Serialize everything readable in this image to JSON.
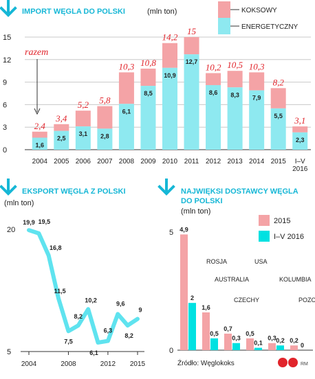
{
  "colors": {
    "accent": "#16b7d6",
    "koksowy": "#f4a3a6",
    "energetyczny": "#8ee9f0",
    "cyan_strong": "#00e1e1",
    "label_red": "#e1242b",
    "line": "#5fe3ef"
  },
  "chart_data": [
    {
      "type": "bar",
      "title": "IMPORT WĘGLA DO POLSKI",
      "unit": "(mln ton)",
      "categories": [
        "2004",
        "2005",
        "2006",
        "2007",
        "2008",
        "2009",
        "2010",
        "2011",
        "2012",
        "2013",
        "2014",
        "2015",
        "I–V 2016"
      ],
      "series": [
        {
          "name": "ENERGETYCZNY",
          "values": [
            1.6,
            2.5,
            3.1,
            2.8,
            6.1,
            8.5,
            10.9,
            12.7,
            8.6,
            8.3,
            7.9,
            5.5,
            2.3
          ]
        },
        {
          "name": "KOKSOWY",
          "values": [
            0.8,
            0.9,
            2.1,
            3.0,
            4.2,
            2.3,
            3.3,
            2.3,
            1.6,
            2.2,
            2.4,
            2.7,
            0.8
          ]
        }
      ],
      "series_labels": [
        "1,6",
        "2,5",
        "3,1",
        "2,8",
        "6,1",
        "8,5",
        "10,9",
        "12,7",
        "8,6",
        "8,3",
        "7,9",
        "5,5",
        "2,3"
      ],
      "totals": [
        2.4,
        3.4,
        5.2,
        5.8,
        10.3,
        10.8,
        14.2,
        15,
        10.2,
        10.5,
        10.3,
        8.2,
        3.1
      ],
      "total_labels": [
        "2,4",
        "3,4",
        "5,2",
        "5,8",
        "10,3",
        "10,8",
        "14,2",
        "15",
        "10,2",
        "10,5",
        "10,3",
        "8,2",
        "3,1"
      ],
      "total_annotation": "razem",
      "ylim": [
        0,
        15
      ],
      "yticks": [
        0,
        3,
        6,
        9,
        12,
        15
      ],
      "legend": [
        "KOKSOWY",
        "ENERGETYCZNY"
      ],
      "legend_position": "top-right"
    },
    {
      "type": "line",
      "title": "EKSPORT WĘGLA Z POLSKI",
      "unit": "(mln ton)",
      "x": [
        2004,
        2005,
        2006,
        2007,
        2008,
        2009,
        2010,
        2011,
        2012,
        2013,
        2014,
        2015
      ],
      "values": [
        19.9,
        19.5,
        16.8,
        11.5,
        7.5,
        8.2,
        10.2,
        6.1,
        6.3,
        9.6,
        8.2,
        9
      ],
      "value_labels": [
        "19,9",
        "19,5",
        "16,8",
        "11,5",
        "7,5",
        "8,2",
        "10,2",
        "6,1",
        "6,3",
        "9,6",
        "8,2",
        "9"
      ],
      "ylim": [
        5,
        20
      ],
      "yticks": [
        5,
        20
      ],
      "xticks": [
        "2004",
        "2008",
        "2012",
        "2015"
      ]
    },
    {
      "type": "bar",
      "title": "NAJWIĘKSI DOSTAWCY WĘGLA DO POLSKI",
      "unit": "(mln ton)",
      "categories": [
        "ROSJA",
        "AUSTRALIA",
        "CZECHY",
        "USA",
        "KOLUMBIA",
        "POZOSTAŁI"
      ],
      "series": [
        {
          "name": "2015",
          "values": [
            4.9,
            1.6,
            0.7,
            0.5,
            0.3,
            0.2
          ]
        },
        {
          "name": "I–V 2016",
          "values": [
            2,
            0.5,
            0.3,
            0.1,
            0.2,
            0
          ]
        }
      ],
      "series_labels": [
        [
          "4,9",
          "1,6",
          "0,7",
          "0,5",
          "0,3",
          "0,2"
        ],
        [
          "2",
          "0,5",
          "0,3",
          "0,1",
          "0,2",
          "0"
        ]
      ],
      "ylim": [
        0,
        5
      ],
      "yticks": [
        0,
        5
      ],
      "legend_position": "top-right",
      "source": "Źródło: Węglokoks",
      "credit": "RM"
    }
  ]
}
